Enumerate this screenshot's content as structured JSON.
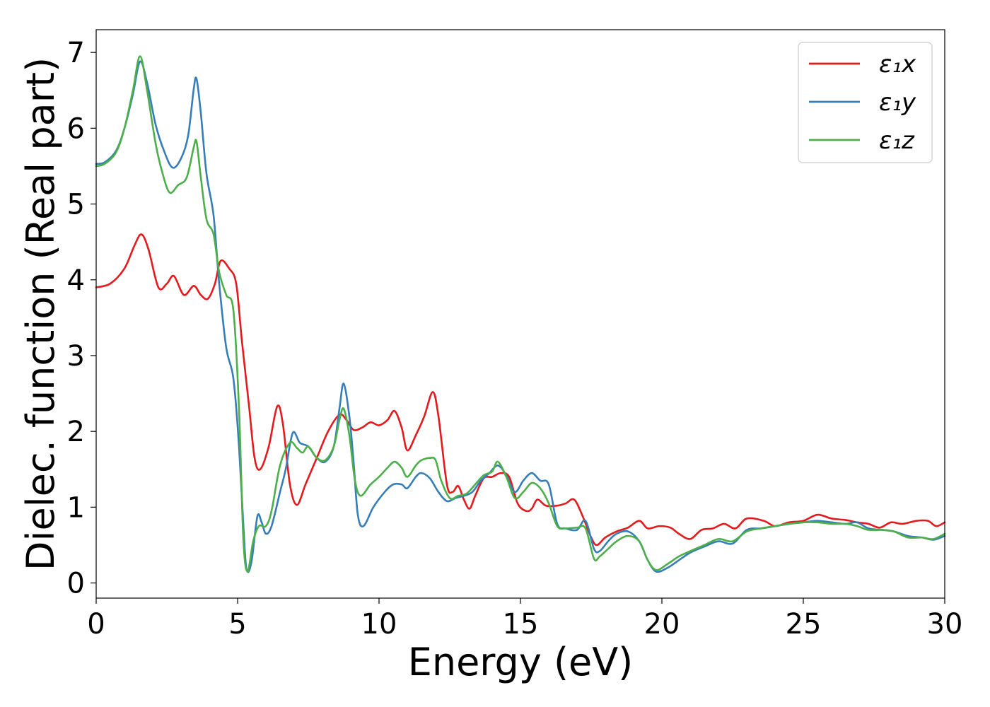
{
  "chart_data": {
    "type": "line",
    "title": "",
    "xlabel": "Energy (eV)",
    "ylabel": "Dielec. function (Real part)",
    "xlim": [
      0,
      30
    ],
    "ylim": [
      -0.2,
      7.3
    ],
    "xticks": [
      0,
      5,
      10,
      15,
      20,
      25,
      30
    ],
    "yticks": [
      0,
      1,
      2,
      3,
      4,
      5,
      6,
      7
    ],
    "grid": false,
    "legend_position": "top-right",
    "series": [
      {
        "name": "ε₁x",
        "color": "#e41a1c",
        "points": [
          [
            0,
            3.9
          ],
          [
            0.5,
            3.95
          ],
          [
            1.0,
            4.15
          ],
          [
            1.35,
            4.45
          ],
          [
            1.6,
            4.6
          ],
          [
            1.85,
            4.4
          ],
          [
            2.2,
            3.9
          ],
          [
            2.5,
            3.95
          ],
          [
            2.75,
            4.05
          ],
          [
            3.1,
            3.8
          ],
          [
            3.45,
            3.92
          ],
          [
            3.7,
            3.8
          ],
          [
            3.95,
            3.75
          ],
          [
            4.2,
            3.95
          ],
          [
            4.4,
            4.25
          ],
          [
            4.7,
            4.15
          ],
          [
            4.95,
            3.95
          ],
          [
            5.15,
            3.2
          ],
          [
            5.4,
            2.35
          ],
          [
            5.6,
            1.65
          ],
          [
            5.8,
            1.5
          ],
          [
            6.1,
            1.8
          ],
          [
            6.4,
            2.33
          ],
          [
            6.6,
            2.1
          ],
          [
            6.85,
            1.3
          ],
          [
            7.1,
            1.03
          ],
          [
            7.4,
            1.3
          ],
          [
            7.8,
            1.65
          ],
          [
            8.2,
            2.0
          ],
          [
            8.6,
            2.22
          ],
          [
            8.85,
            2.15
          ],
          [
            9.1,
            2.02
          ],
          [
            9.4,
            2.05
          ],
          [
            9.7,
            2.12
          ],
          [
            10.0,
            2.08
          ],
          [
            10.3,
            2.15
          ],
          [
            10.55,
            2.27
          ],
          [
            10.8,
            2.05
          ],
          [
            11.0,
            1.75
          ],
          [
            11.3,
            1.95
          ],
          [
            11.6,
            2.2
          ],
          [
            11.9,
            2.52
          ],
          [
            12.1,
            2.2
          ],
          [
            12.4,
            1.3
          ],
          [
            12.6,
            1.2
          ],
          [
            12.8,
            1.28
          ],
          [
            13.0,
            1.1
          ],
          [
            13.2,
            0.98
          ],
          [
            13.4,
            1.15
          ],
          [
            13.7,
            1.38
          ],
          [
            14.0,
            1.4
          ],
          [
            14.3,
            1.45
          ],
          [
            14.6,
            1.4
          ],
          [
            14.9,
            1.05
          ],
          [
            15.2,
            0.95
          ],
          [
            15.4,
            0.98
          ],
          [
            15.6,
            1.1
          ],
          [
            15.9,
            1.02
          ],
          [
            16.3,
            1.02
          ],
          [
            16.6,
            1.05
          ],
          [
            16.9,
            1.1
          ],
          [
            17.2,
            0.88
          ],
          [
            17.5,
            0.6
          ],
          [
            17.7,
            0.5
          ],
          [
            18.0,
            0.6
          ],
          [
            18.4,
            0.68
          ],
          [
            18.8,
            0.73
          ],
          [
            19.2,
            0.82
          ],
          [
            19.5,
            0.72
          ],
          [
            19.9,
            0.75
          ],
          [
            20.3,
            0.73
          ],
          [
            20.6,
            0.65
          ],
          [
            21.0,
            0.58
          ],
          [
            21.4,
            0.7
          ],
          [
            21.8,
            0.72
          ],
          [
            22.2,
            0.78
          ],
          [
            22.6,
            0.72
          ],
          [
            23.0,
            0.85
          ],
          [
            23.6,
            0.82
          ],
          [
            24.0,
            0.75
          ],
          [
            24.5,
            0.8
          ],
          [
            25.0,
            0.82
          ],
          [
            25.5,
            0.9
          ],
          [
            26.0,
            0.85
          ],
          [
            26.5,
            0.83
          ],
          [
            26.9,
            0.8
          ],
          [
            27.3,
            0.78
          ],
          [
            27.7,
            0.73
          ],
          [
            28.1,
            0.8
          ],
          [
            28.5,
            0.78
          ],
          [
            29.0,
            0.82
          ],
          [
            29.4,
            0.82
          ],
          [
            29.7,
            0.75
          ],
          [
            30.0,
            0.8
          ]
        ]
      },
      {
        "name": "ε₁y",
        "color": "#377eb8",
        "points": [
          [
            0,
            5.53
          ],
          [
            0.3,
            5.55
          ],
          [
            0.7,
            5.7
          ],
          [
            1.0,
            6.0
          ],
          [
            1.3,
            6.45
          ],
          [
            1.55,
            6.88
          ],
          [
            1.8,
            6.6
          ],
          [
            2.1,
            6.05
          ],
          [
            2.4,
            5.7
          ],
          [
            2.7,
            5.48
          ],
          [
            3.0,
            5.6
          ],
          [
            3.25,
            5.9
          ],
          [
            3.45,
            6.52
          ],
          [
            3.55,
            6.65
          ],
          [
            3.7,
            6.2
          ],
          [
            3.9,
            5.4
          ],
          [
            4.15,
            4.85
          ],
          [
            4.35,
            3.95
          ],
          [
            4.6,
            3.1
          ],
          [
            4.85,
            2.7
          ],
          [
            5.05,
            1.8
          ],
          [
            5.25,
            0.45
          ],
          [
            5.35,
            0.15
          ],
          [
            5.5,
            0.3
          ],
          [
            5.7,
            0.88
          ],
          [
            5.85,
            0.8
          ],
          [
            6.0,
            0.65
          ],
          [
            6.2,
            0.75
          ],
          [
            6.5,
            1.2
          ],
          [
            6.7,
            1.5
          ],
          [
            6.95,
            1.98
          ],
          [
            7.2,
            1.85
          ],
          [
            7.5,
            1.8
          ],
          [
            7.8,
            1.65
          ],
          [
            8.1,
            1.6
          ],
          [
            8.4,
            1.8
          ],
          [
            8.6,
            2.3
          ],
          [
            8.75,
            2.63
          ],
          [
            8.95,
            2.2
          ],
          [
            9.1,
            1.6
          ],
          [
            9.25,
            0.9
          ],
          [
            9.45,
            0.75
          ],
          [
            9.8,
            1.0
          ],
          [
            10.2,
            1.2
          ],
          [
            10.5,
            1.3
          ],
          [
            10.8,
            1.3
          ],
          [
            11.0,
            1.25
          ],
          [
            11.3,
            1.4
          ],
          [
            11.5,
            1.45
          ],
          [
            11.8,
            1.38
          ],
          [
            12.1,
            1.2
          ],
          [
            12.4,
            1.08
          ],
          [
            12.7,
            1.12
          ],
          [
            13.0,
            1.15
          ],
          [
            13.3,
            1.2
          ],
          [
            13.6,
            1.35
          ],
          [
            13.9,
            1.45
          ],
          [
            14.2,
            1.55
          ],
          [
            14.5,
            1.42
          ],
          [
            14.8,
            1.2
          ],
          [
            15.1,
            1.35
          ],
          [
            15.4,
            1.45
          ],
          [
            15.7,
            1.35
          ],
          [
            16.0,
            1.3
          ],
          [
            16.3,
            0.78
          ],
          [
            16.6,
            0.72
          ],
          [
            17.0,
            0.7
          ],
          [
            17.3,
            0.82
          ],
          [
            17.6,
            0.45
          ],
          [
            17.8,
            0.42
          ],
          [
            18.1,
            0.55
          ],
          [
            18.4,
            0.65
          ],
          [
            18.8,
            0.68
          ],
          [
            19.2,
            0.55
          ],
          [
            19.5,
            0.3
          ],
          [
            19.8,
            0.15
          ],
          [
            20.2,
            0.2
          ],
          [
            20.6,
            0.3
          ],
          [
            21.0,
            0.4
          ],
          [
            21.5,
            0.48
          ],
          [
            22.0,
            0.55
          ],
          [
            22.5,
            0.52
          ],
          [
            23.0,
            0.7
          ],
          [
            23.5,
            0.72
          ],
          [
            24.0,
            0.75
          ],
          [
            24.5,
            0.78
          ],
          [
            25.0,
            0.8
          ],
          [
            25.5,
            0.82
          ],
          [
            26.0,
            0.8
          ],
          [
            26.5,
            0.78
          ],
          [
            26.9,
            0.8
          ],
          [
            27.3,
            0.72
          ],
          [
            27.8,
            0.7
          ],
          [
            28.2,
            0.68
          ],
          [
            28.7,
            0.62
          ],
          [
            29.2,
            0.6
          ],
          [
            29.6,
            0.57
          ],
          [
            30.0,
            0.62
          ]
        ]
      },
      {
        "name": "ε₁z",
        "color": "#4daf4a",
        "points": [
          [
            0,
            5.5
          ],
          [
            0.3,
            5.53
          ],
          [
            0.7,
            5.68
          ],
          [
            1.0,
            6.0
          ],
          [
            1.3,
            6.5
          ],
          [
            1.55,
            6.95
          ],
          [
            1.8,
            6.5
          ],
          [
            2.1,
            5.8
          ],
          [
            2.35,
            5.4
          ],
          [
            2.6,
            5.15
          ],
          [
            2.9,
            5.25
          ],
          [
            3.2,
            5.35
          ],
          [
            3.45,
            5.75
          ],
          [
            3.55,
            5.82
          ],
          [
            3.7,
            5.35
          ],
          [
            3.9,
            4.8
          ],
          [
            4.15,
            4.6
          ],
          [
            4.35,
            4.1
          ],
          [
            4.6,
            3.8
          ],
          [
            4.85,
            3.6
          ],
          [
            5.05,
            2.3
          ],
          [
            5.2,
            0.6
          ],
          [
            5.35,
            0.15
          ],
          [
            5.55,
            0.55
          ],
          [
            5.75,
            0.75
          ],
          [
            6.0,
            0.75
          ],
          [
            6.2,
            0.95
          ],
          [
            6.5,
            1.55
          ],
          [
            6.85,
            1.85
          ],
          [
            7.1,
            1.78
          ],
          [
            7.3,
            1.72
          ],
          [
            7.5,
            1.8
          ],
          [
            7.8,
            1.65
          ],
          [
            8.1,
            1.62
          ],
          [
            8.4,
            1.8
          ],
          [
            8.6,
            2.15
          ],
          [
            8.75,
            2.3
          ],
          [
            8.95,
            1.95
          ],
          [
            9.15,
            1.35
          ],
          [
            9.35,
            1.15
          ],
          [
            9.7,
            1.3
          ],
          [
            10.0,
            1.4
          ],
          [
            10.3,
            1.52
          ],
          [
            10.55,
            1.6
          ],
          [
            10.8,
            1.52
          ],
          [
            11.0,
            1.4
          ],
          [
            11.3,
            1.55
          ],
          [
            11.5,
            1.62
          ],
          [
            11.8,
            1.65
          ],
          [
            12.0,
            1.62
          ],
          [
            12.2,
            1.35
          ],
          [
            12.5,
            1.12
          ],
          [
            12.8,
            1.15
          ],
          [
            13.1,
            1.18
          ],
          [
            13.4,
            1.3
          ],
          [
            13.7,
            1.42
          ],
          [
            14.0,
            1.47
          ],
          [
            14.2,
            1.6
          ],
          [
            14.5,
            1.4
          ],
          [
            14.8,
            1.12
          ],
          [
            15.1,
            1.2
          ],
          [
            15.4,
            1.32
          ],
          [
            15.7,
            1.25
          ],
          [
            16.0,
            1.05
          ],
          [
            16.3,
            0.75
          ],
          [
            16.6,
            0.72
          ],
          [
            17.0,
            0.73
          ],
          [
            17.3,
            0.72
          ],
          [
            17.6,
            0.32
          ],
          [
            17.8,
            0.35
          ],
          [
            18.1,
            0.45
          ],
          [
            18.4,
            0.55
          ],
          [
            18.8,
            0.62
          ],
          [
            19.2,
            0.55
          ],
          [
            19.5,
            0.3
          ],
          [
            19.8,
            0.17
          ],
          [
            20.2,
            0.25
          ],
          [
            20.6,
            0.35
          ],
          [
            21.0,
            0.42
          ],
          [
            21.5,
            0.5
          ],
          [
            22.0,
            0.58
          ],
          [
            22.5,
            0.55
          ],
          [
            23.0,
            0.68
          ],
          [
            23.5,
            0.72
          ],
          [
            24.0,
            0.75
          ],
          [
            24.5,
            0.78
          ],
          [
            25.0,
            0.8
          ],
          [
            25.5,
            0.8
          ],
          [
            26.0,
            0.78
          ],
          [
            26.5,
            0.78
          ],
          [
            26.9,
            0.75
          ],
          [
            27.3,
            0.7
          ],
          [
            27.8,
            0.7
          ],
          [
            28.2,
            0.68
          ],
          [
            28.7,
            0.6
          ],
          [
            29.2,
            0.6
          ],
          [
            29.6,
            0.58
          ],
          [
            30.0,
            0.65
          ]
        ]
      }
    ]
  }
}
